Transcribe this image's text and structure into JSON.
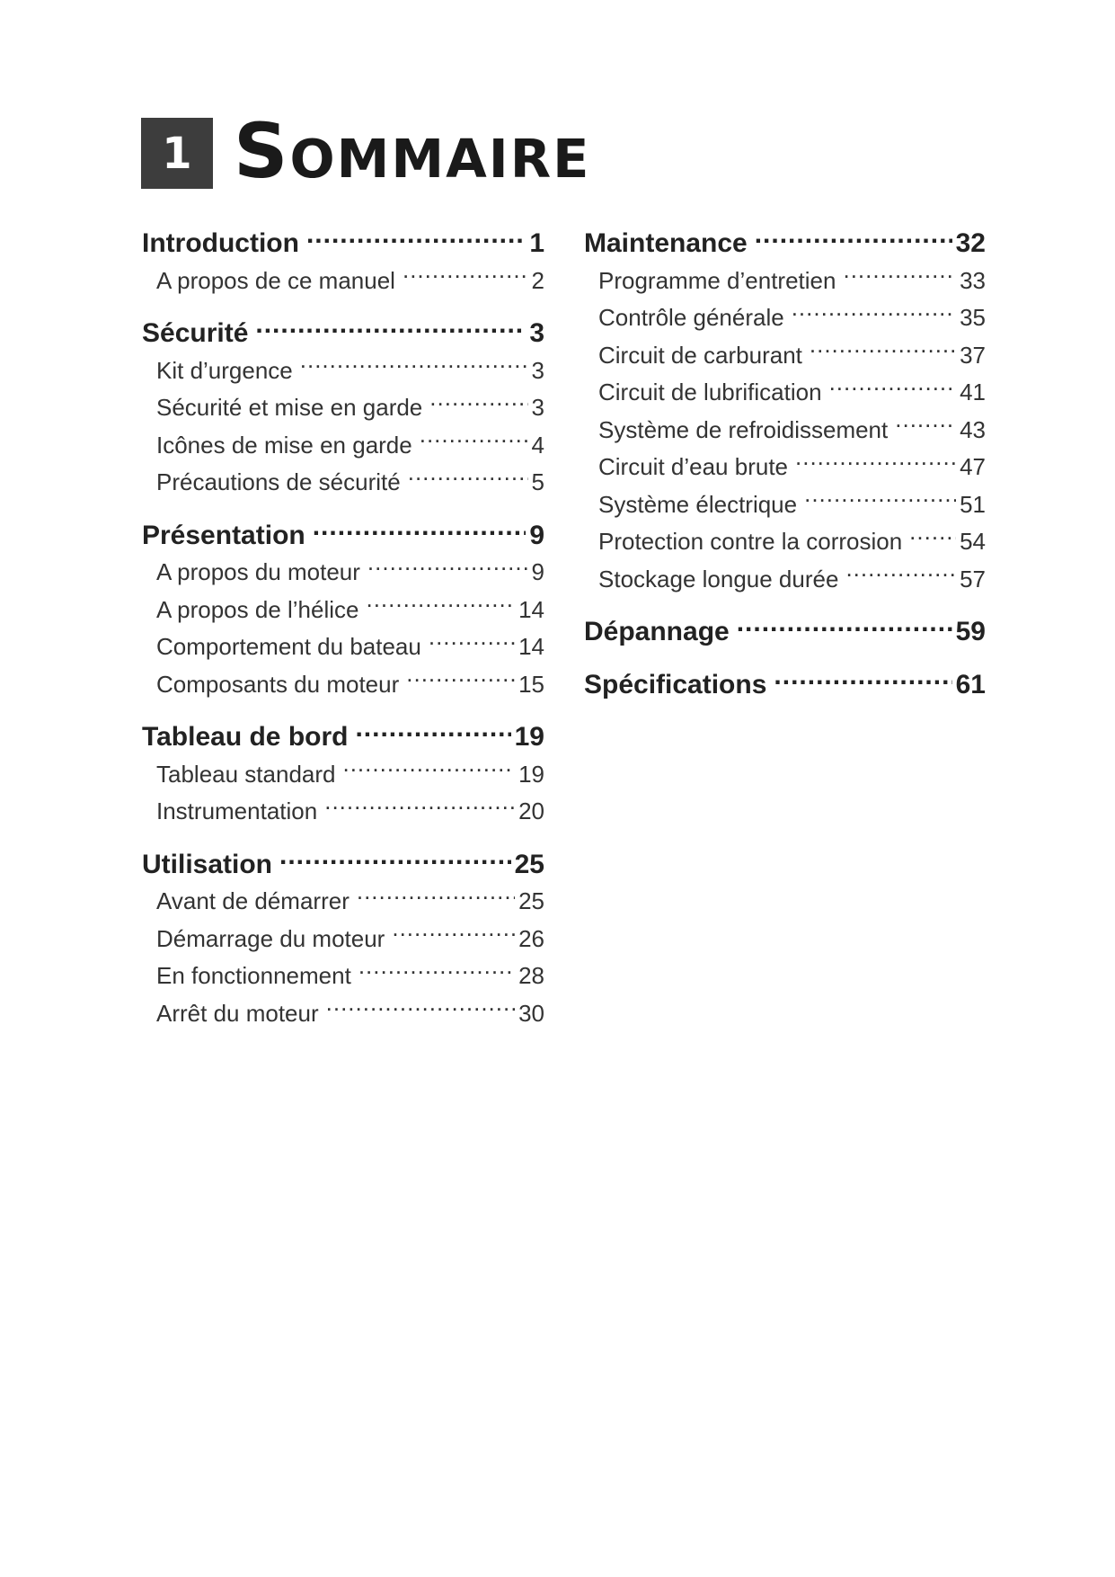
{
  "header": {
    "chapter_number": "1",
    "title": "Sommaire"
  },
  "columns": [
    [
      {
        "type": "h",
        "label": "Introduction",
        "page": "1"
      },
      {
        "type": "s",
        "label": "A propos de ce manuel",
        "page": "2"
      },
      {
        "type": "h",
        "label": "Sécurité",
        "page": "3"
      },
      {
        "type": "s",
        "label": "Kit d’urgence",
        "page": "3"
      },
      {
        "type": "s",
        "label": "Sécurité et mise en garde",
        "page": "3"
      },
      {
        "type": "s",
        "label": "Icônes de mise en garde",
        "page": "4"
      },
      {
        "type": "s",
        "label": "Précautions de sécurité",
        "page": "5"
      },
      {
        "type": "h",
        "label": "Présentation",
        "page": "9"
      },
      {
        "type": "s",
        "label": "A propos du moteur",
        "page": "9"
      },
      {
        "type": "s",
        "label": "A propos de l’hélice",
        "page": "14"
      },
      {
        "type": "s",
        "label": "Comportement du bateau",
        "page": "14"
      },
      {
        "type": "s",
        "label": "Composants du moteur",
        "page": "15"
      },
      {
        "type": "h",
        "label": "Tableau de bord",
        "page": "19"
      },
      {
        "type": "s",
        "label": "Tableau standard",
        "page": "19"
      },
      {
        "type": "s",
        "label": "Instrumentation",
        "page": "20"
      },
      {
        "type": "h",
        "label": "Utilisation",
        "page": "25"
      },
      {
        "type": "s",
        "label": "Avant de démarrer",
        "page": "25"
      },
      {
        "type": "s",
        "label": "Démarrage du moteur",
        "page": "26"
      },
      {
        "type": "s",
        "label": "En fonctionnement",
        "page": "28"
      },
      {
        "type": "s",
        "label": "Arrêt du moteur",
        "page": "30"
      }
    ],
    [
      {
        "type": "h",
        "label": "Maintenance",
        "page": "32"
      },
      {
        "type": "s",
        "label": "Programme d’entretien",
        "page": "33"
      },
      {
        "type": "s",
        "label": "Contrôle générale",
        "page": "35"
      },
      {
        "type": "s",
        "label": "Circuit de carburant",
        "page": "37"
      },
      {
        "type": "s",
        "label": "Circuit de lubrification",
        "page": "41"
      },
      {
        "type": "s",
        "label": "Système de refroidissement",
        "page": "43"
      },
      {
        "type": "s",
        "label": "Circuit d’eau brute",
        "page": "47"
      },
      {
        "type": "s",
        "label": "Système électrique",
        "page": "51"
      },
      {
        "type": "s",
        "label": "Protection contre la corrosion",
        "page": "54"
      },
      {
        "type": "s",
        "label": "Stockage longue durée",
        "page": "57"
      },
      {
        "type": "h",
        "label": "Dépannage",
        "page": "59"
      },
      {
        "type": "h",
        "label": "Spécifications",
        "page": "61"
      }
    ]
  ]
}
